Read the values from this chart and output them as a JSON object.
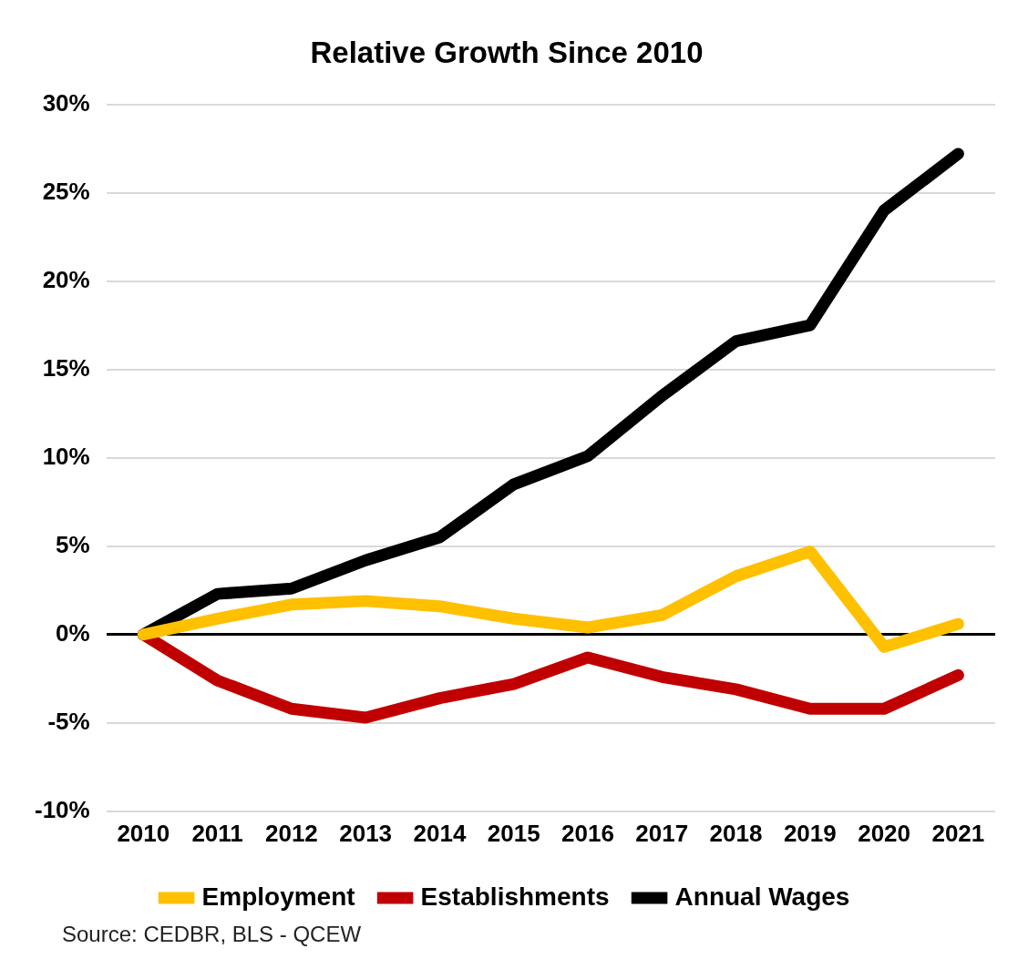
{
  "chart_data": {
    "type": "line",
    "title": "Relative Growth Since 2010",
    "categories": [
      "2010",
      "2011",
      "2012",
      "2013",
      "2014",
      "2015",
      "2016",
      "2017",
      "2018",
      "2019",
      "2020",
      "2021"
    ],
    "series": [
      {
        "name": "Employment",
        "color": "#ffc000",
        "values": [
          0,
          0.9,
          1.7,
          1.9,
          1.6,
          0.9,
          0.4,
          1.1,
          3.3,
          4.7,
          -0.7,
          0.6
        ]
      },
      {
        "name": "Establishments",
        "color": "#c00000",
        "values": [
          0,
          -2.6,
          -4.2,
          -4.7,
          -3.6,
          -2.8,
          -1.3,
          -2.4,
          -3.1,
          -4.2,
          -4.2,
          -2.3
        ]
      },
      {
        "name": "Annual Wages",
        "color": "#000000",
        "values": [
          0,
          2.3,
          2.6,
          4.2,
          5.5,
          8.5,
          10.1,
          13.5,
          16.6,
          17.5,
          24.0,
          27.2
        ]
      }
    ],
    "ylim": [
      -10,
      30
    ],
    "yticks": [
      {
        "value": -10,
        "label": "-10%"
      },
      {
        "value": -5,
        "label": "-5%"
      },
      {
        "value": 0,
        "label": "0%"
      },
      {
        "value": 5,
        "label": "5%"
      },
      {
        "value": 10,
        "label": "10%"
      },
      {
        "value": 15,
        "label": "15%"
      },
      {
        "value": 20,
        "label": "20%"
      },
      {
        "value": 25,
        "label": "25%"
      },
      {
        "value": 30,
        "label": "30%"
      }
    ],
    "grid": "y",
    "legend": "bottom",
    "marker": "none",
    "line_style": "solid",
    "annotations": [
      "Source: CEDBR, BLS - QCEW"
    ]
  }
}
